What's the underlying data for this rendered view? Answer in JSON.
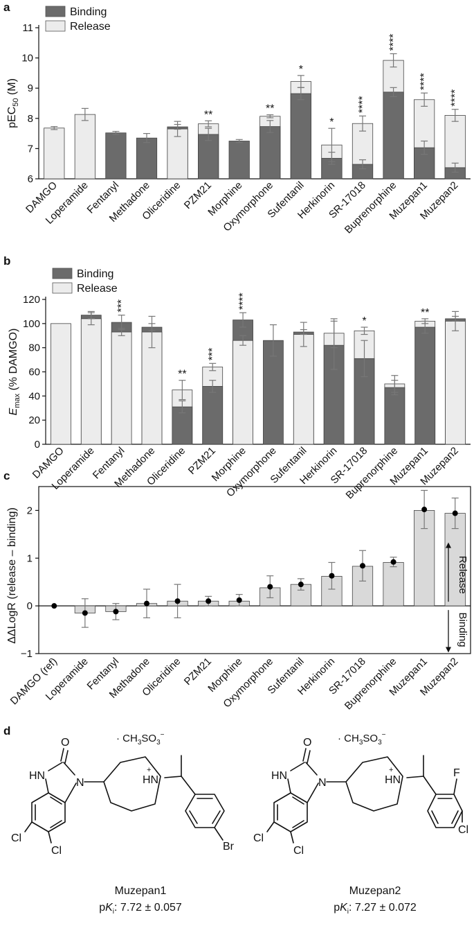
{
  "colors": {
    "binding": "#6b6b6b",
    "release": "#ececec",
    "ddlog": "#d9d9d9",
    "error": "#777777",
    "text": "#111111"
  },
  "chart_data": [
    {
      "panel": "a",
      "type": "bar",
      "ylabel_main": "pEC",
      "ylabel_sub": "50",
      "ylabel_unit": " (M)",
      "ylim": [
        6,
        11
      ],
      "yticks": [
        6,
        7,
        8,
        9,
        10,
        11
      ],
      "categories": [
        "DAMGO",
        "Loperamide",
        "Fentanyl",
        "Methadone",
        "Oliceridine",
        "PZM21",
        "Morphine",
        "Oxymorphone",
        "Sufentanil",
        "Herkinorin",
        "SR-17018",
        "Buprenorphine",
        "Muzepan1",
        "Muzepan2"
      ],
      "legend": [
        "Binding",
        "Release"
      ],
      "series": [
        {
          "name": "Binding",
          "values": [
            null,
            null,
            7.52,
            7.35,
            7.72,
            7.47,
            7.25,
            7.73,
            8.82,
            6.68,
            6.48,
            8.87,
            7.03,
            6.37
          ],
          "errors": [
            null,
            null,
            0.05,
            0.15,
            0.08,
            0.2,
            0.05,
            0.2,
            0.2,
            0.2,
            0.15,
            0.15,
            0.22,
            0.15
          ]
        },
        {
          "name": "Release",
          "values": [
            7.68,
            8.13,
            null,
            null,
            7.65,
            7.82,
            null,
            8.07,
            9.22,
            7.12,
            7.83,
            9.92,
            8.62,
            8.1
          ],
          "errors": [
            0.05,
            0.2,
            null,
            null,
            0.25,
            0.1,
            null,
            0.05,
            0.2,
            0.55,
            0.25,
            0.22,
            0.22,
            0.2
          ]
        }
      ],
      "sig_marks": [
        "",
        "",
        "",
        "",
        "",
        "**",
        "",
        "**",
        "*",
        "*",
        "****",
        "****",
        "****",
        "****"
      ]
    },
    {
      "panel": "b",
      "type": "bar",
      "ylabel_main": "E",
      "ylabel_sub": "max",
      "ylabel_unit": " (% DAMGO)",
      "ylim": [
        0,
        120
      ],
      "yticks": [
        0,
        20,
        40,
        60,
        80,
        100,
        120
      ],
      "categories": [
        "DAMGO",
        "Loperamide",
        "Fentanyl",
        "Methadone",
        "Oliceridine",
        "PZM21",
        "Morphine",
        "Oxymorphone",
        "Sufentanil",
        "Herkinorin",
        "SR-17018",
        "Buprenorphine",
        "Muzepan1",
        "Muzepan2"
      ],
      "legend": [
        "Binding",
        "Release"
      ],
      "series": [
        {
          "name": "Binding",
          "values": [
            null,
            107,
            101,
            97,
            31,
            48,
            103,
            86,
            93,
            82,
            71,
            47,
            97,
            104
          ],
          "errors": [
            null,
            3,
            6,
            3,
            5,
            5,
            6,
            13,
            2,
            20,
            15,
            6,
            5,
            2
          ]
        },
        {
          "name": "Release",
          "values": [
            100,
            104,
            93,
            93,
            45,
            64,
            86,
            null,
            91,
            92,
            94,
            50,
            102,
            102
          ],
          "errors": [
            0,
            5,
            3,
            13,
            8,
            3,
            4,
            null,
            10,
            12,
            3,
            7,
            2,
            8
          ]
        }
      ],
      "sig_marks": [
        "",
        "",
        "***",
        "",
        "**",
        "***",
        "****",
        "",
        "",
        "",
        "*",
        "",
        "**",
        ""
      ]
    },
    {
      "panel": "c",
      "type": "bar",
      "ylabel": "ΔΔLogR (release – binding)",
      "ylim": [
        -1,
        2.5
      ],
      "yticks": [
        -1,
        0,
        1,
        2
      ],
      "categories": [
        "DAMGO (ref)",
        "Loperamide",
        "Fentanyl",
        "Methadone",
        "Oliceridine",
        "PZM21",
        "Morphine",
        "Oxymorphone",
        "Sufentanil",
        "Herkinorin",
        "SR-17018",
        "Buprenorphine",
        "Muzepan1",
        "Muzepan2"
      ],
      "values": [
        0,
        -0.15,
        -0.12,
        0.05,
        0.1,
        0.1,
        0.1,
        0.38,
        0.45,
        0.62,
        0.83,
        0.91,
        2.0,
        1.94
      ],
      "points": [
        0,
        -0.15,
        -0.12,
        0.05,
        0.1,
        0.1,
        0.12,
        0.4,
        0.45,
        0.63,
        0.84,
        0.92,
        2.02,
        1.94
      ],
      "errors": [
        0,
        0.3,
        0.17,
        0.3,
        0.35,
        0.1,
        0.12,
        0.23,
        0.12,
        0.28,
        0.32,
        0.1,
        0.4,
        0.32
      ],
      "arrow_labels": {
        "up": "Release",
        "down": "Binding"
      }
    }
  ],
  "structures": {
    "panel_label": "d",
    "left": {
      "name": "Muzepan1",
      "salt": "· CH3SO3−",
      "pki": "pKi: 7.72 ± 0.057",
      "atoms": {
        "o": "O",
        "nh": "HN",
        "n": "N",
        "hn_plus": "HN",
        "plus": "+",
        "br": "Br",
        "cl1": "Cl",
        "cl2": "Cl"
      }
    },
    "right": {
      "name": "Muzepan2",
      "salt": "· CH3SO3−",
      "pki": "pKi: 7.27 ± 0.072",
      "atoms": {
        "o": "O",
        "nh": "HN",
        "n": "N",
        "hn_plus": "HN",
        "plus": "+",
        "f": "F",
        "cl": "Cl",
        "cl1": "Cl",
        "cl2": "Cl"
      }
    }
  }
}
